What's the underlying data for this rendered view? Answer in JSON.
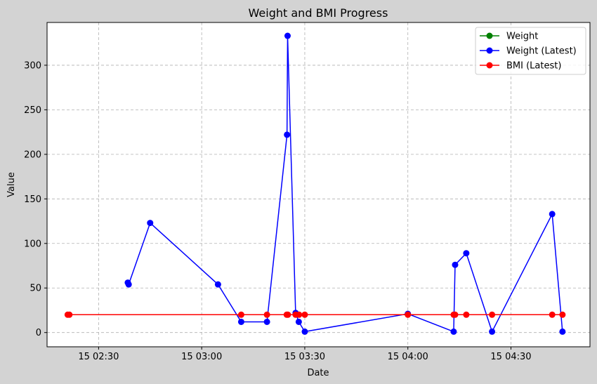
{
  "chart_data": {
    "type": "line",
    "title": "Weight and BMI Progress",
    "xlabel": "Date",
    "ylabel": "Value",
    "x_ticks": [
      {
        "t": "02:30",
        "label": "15 02:30"
      },
      {
        "t": "03:00",
        "label": "15 03:00"
      },
      {
        "t": "03:30",
        "label": "15 03:30"
      },
      {
        "t": "04:00",
        "label": "15 04:00"
      },
      {
        "t": "04:30",
        "label": "15 04:30"
      }
    ],
    "xlim": [
      "02:15",
      "04:53"
    ],
    "ylim": [
      -16,
      348
    ],
    "y_ticks": [
      0,
      50,
      100,
      150,
      200,
      250,
      300
    ],
    "grid": true,
    "legend_position": "top-right",
    "series": [
      {
        "name": "Weight",
        "color": "#008000",
        "points": []
      },
      {
        "name": "Weight (Latest)",
        "color": "#0000ff",
        "points": [
          {
            "x": "02:38:30",
            "y": 56
          },
          {
            "x": "02:38:45",
            "y": 54
          },
          {
            "x": "02:45",
            "y": 123
          },
          {
            "x": "03:04:45",
            "y": 54
          },
          {
            "x": "03:11:30",
            "y": 12
          },
          {
            "x": "03:19",
            "y": 12
          },
          {
            "x": "03:24:50",
            "y": 222
          },
          {
            "x": "03:25",
            "y": 333
          },
          {
            "x": "03:27:20",
            "y": 22
          },
          {
            "x": "03:28:15",
            "y": 12
          },
          {
            "x": "03:30",
            "y": 1
          },
          {
            "x": "04:00",
            "y": 21
          },
          {
            "x": "04:13:20",
            "y": 1
          },
          {
            "x": "04:13:45",
            "y": 76
          },
          {
            "x": "04:17",
            "y": 89
          },
          {
            "x": "04:24:30",
            "y": 1
          },
          {
            "x": "04:42",
            "y": 133
          },
          {
            "x": "04:45",
            "y": 1
          }
        ]
      },
      {
        "name": "BMI (Latest)",
        "color": "#ff0000",
        "points": [
          {
            "x": "02:21",
            "y": 20
          },
          {
            "x": "02:21:30",
            "y": 20
          },
          {
            "x": "03:11:30",
            "y": 20
          },
          {
            "x": "03:19",
            "y": 20
          },
          {
            "x": "03:24:45",
            "y": 20
          },
          {
            "x": "03:25:05",
            "y": 20
          },
          {
            "x": "03:27:20",
            "y": 20
          },
          {
            "x": "03:28:20",
            "y": 20
          },
          {
            "x": "03:30",
            "y": 20
          },
          {
            "x": "04:00",
            "y": 20
          },
          {
            "x": "04:13:20",
            "y": 20
          },
          {
            "x": "04:13:45",
            "y": 20
          },
          {
            "x": "04:17",
            "y": 20
          },
          {
            "x": "04:24:30",
            "y": 20
          },
          {
            "x": "04:42",
            "y": 20
          },
          {
            "x": "04:45",
            "y": 20
          }
        ]
      }
    ]
  }
}
